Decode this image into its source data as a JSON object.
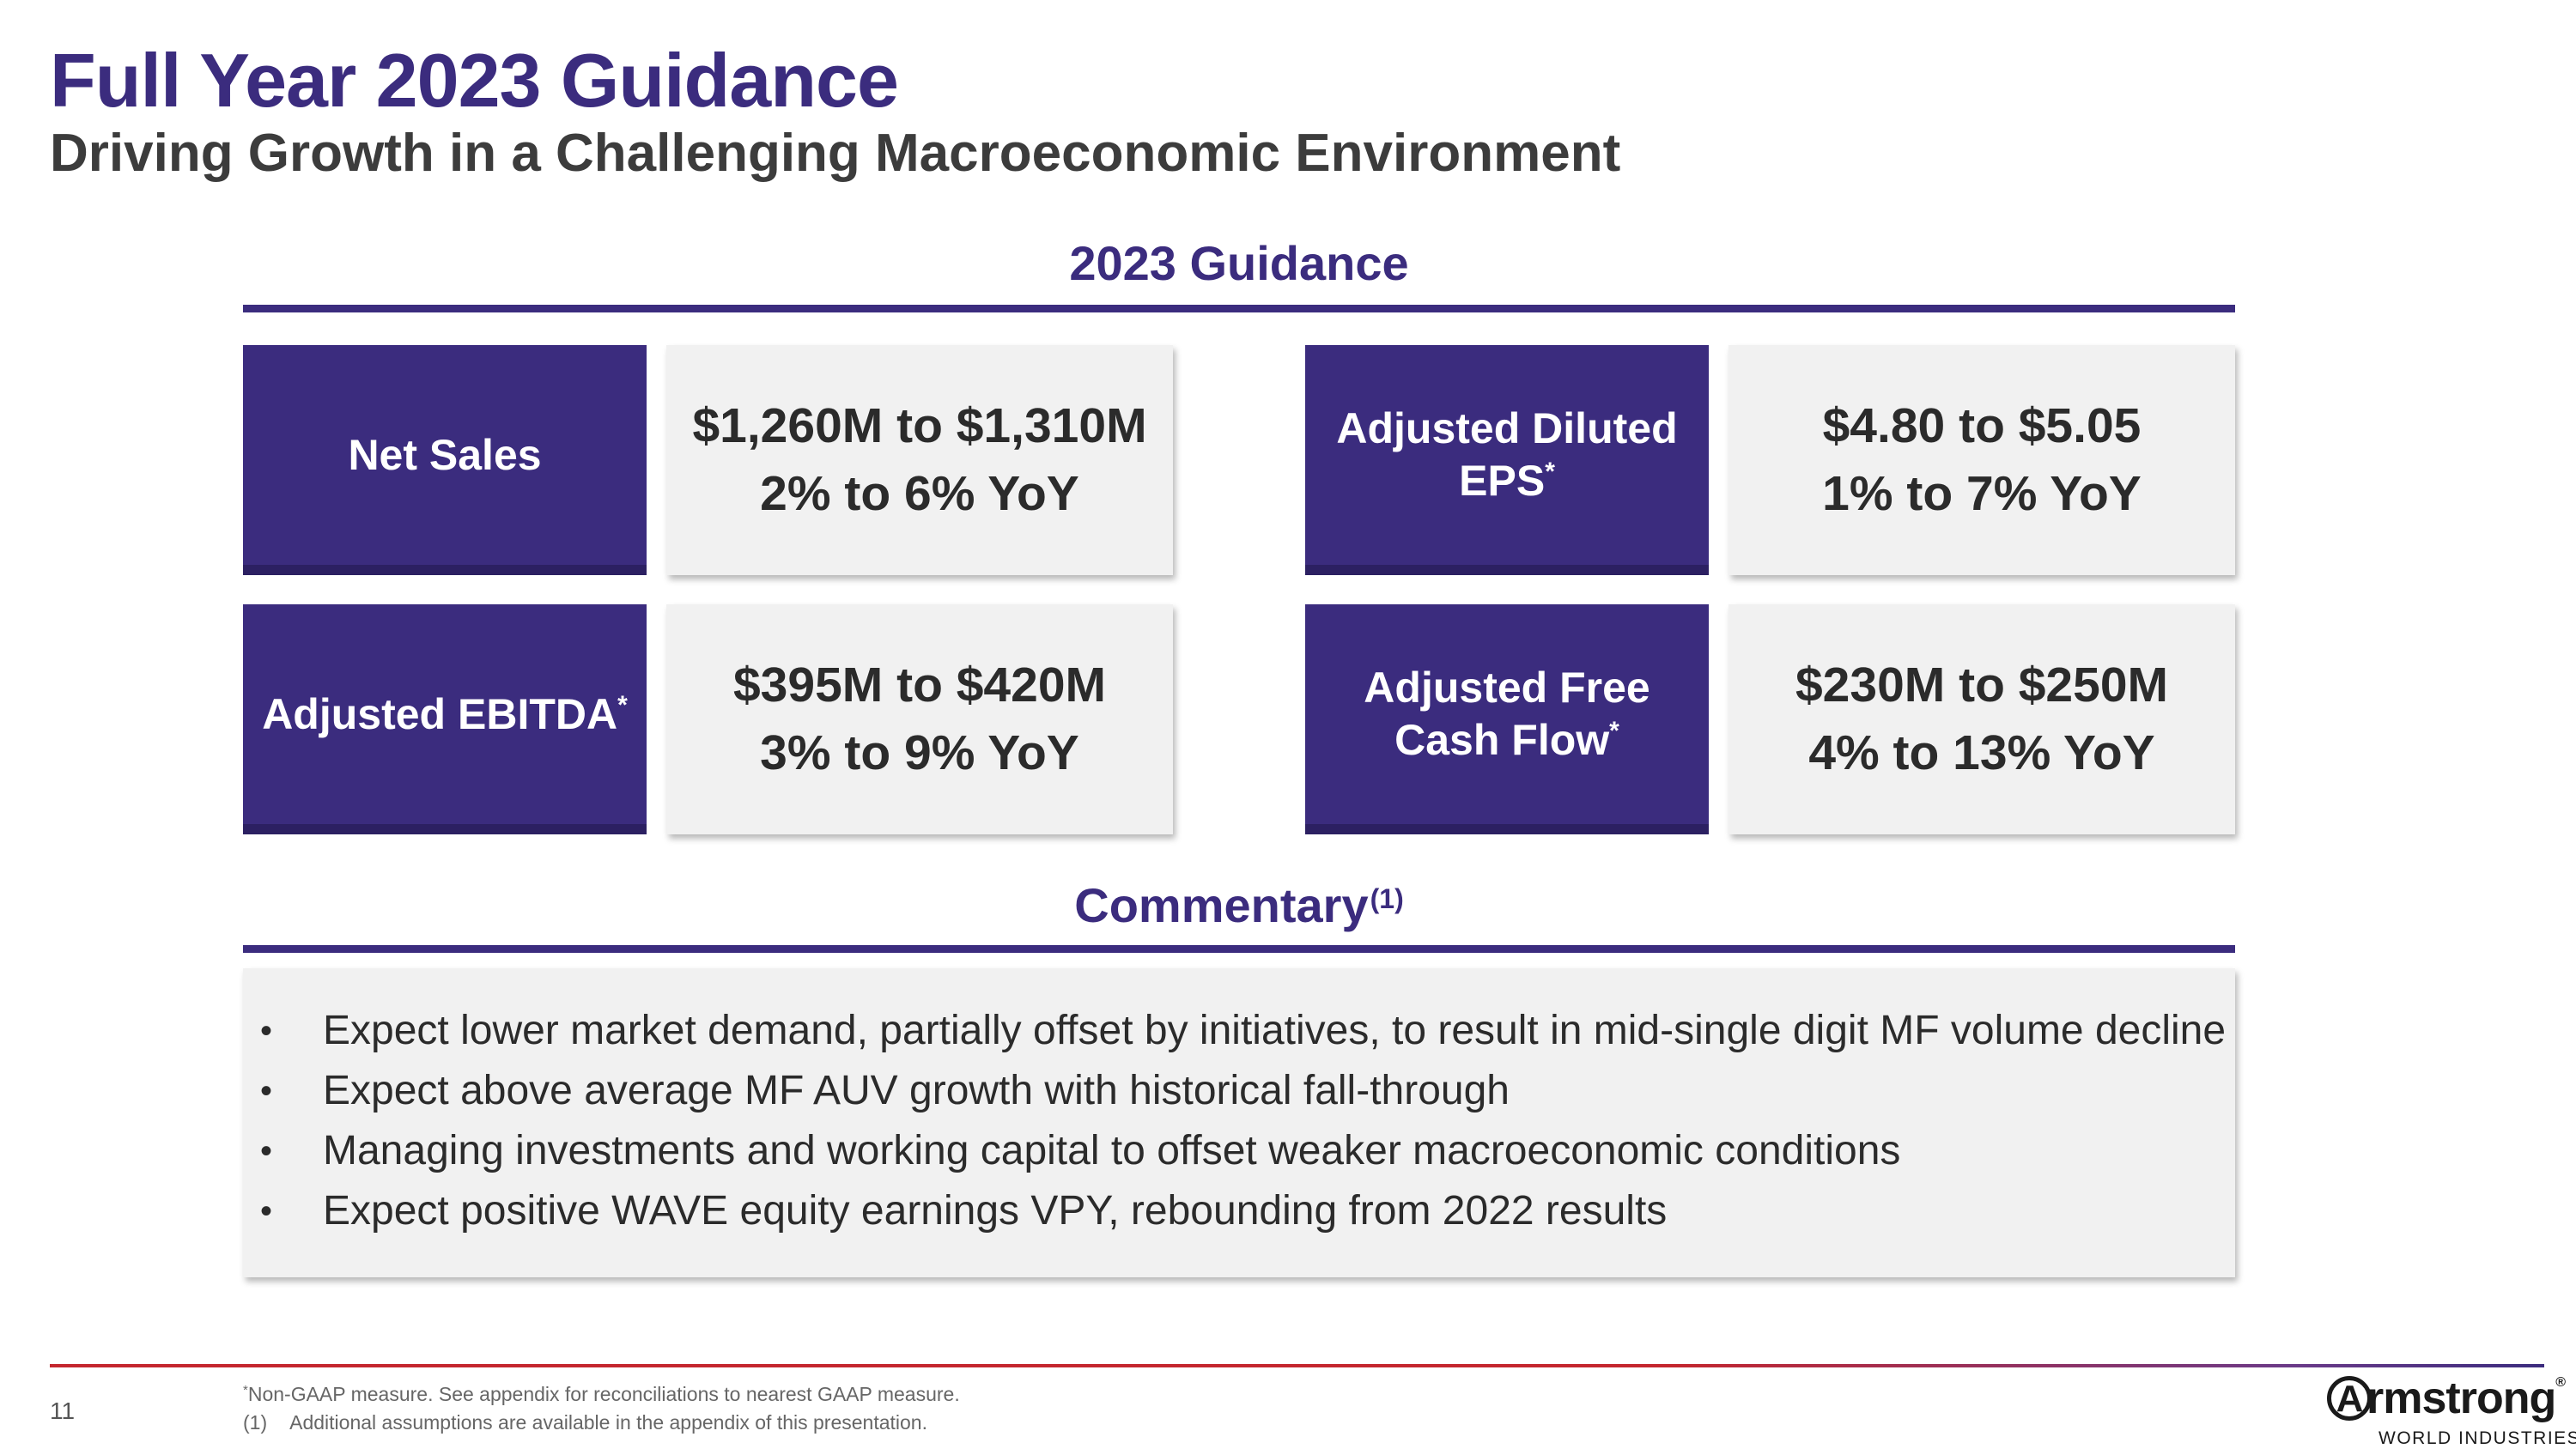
{
  "header": {
    "title": "Full Year 2023 Guidance",
    "subtitle": "Driving Growth in a Challenging Macroeconomic Environment"
  },
  "guidance": {
    "heading": "2023 Guidance",
    "items": [
      {
        "label_line1": "Net Sales",
        "label_line2": "",
        "asterisk": "",
        "range": "$1,260M to $1,310M",
        "yoy": "2% to 6% YoY"
      },
      {
        "label_line1": "Adjusted Diluted",
        "label_line2": "EPS",
        "asterisk": "*",
        "range": "$4.80 to $5.05",
        "yoy": "1% to 7% YoY"
      },
      {
        "label_line1": "Adjusted EBITDA",
        "label_line2": "",
        "asterisk": "*",
        "range": "$395M to $420M",
        "yoy": "3% to 9% YoY"
      },
      {
        "label_line1": "Adjusted Free",
        "label_line2": "Cash Flow",
        "asterisk": "*",
        "range": "$230M to $250M",
        "yoy": "4% to 13% YoY"
      }
    ]
  },
  "commentary": {
    "heading": "Commentary",
    "heading_note": "(1)",
    "bullet_char": "•",
    "bullets": [
      "Expect lower market demand, partially offset by initiatives, to result in mid-single digit MF volume decline",
      "Expect above average MF AUV growth with historical fall-through",
      "Managing investments and working capital to offset weaker macroeconomic conditions",
      "Expect positive WAVE equity earnings VPY, rebounding from 2022 results"
    ]
  },
  "footer": {
    "page_number": "11",
    "footnote_star": "*",
    "footnote_star_text": "Non-GAAP measure. See appendix for reconciliations to nearest GAAP measure.",
    "footnote_1_marker": "(1)",
    "footnote_1_text": "Additional assumptions are available in the appendix of this presentation."
  },
  "logo": {
    "first_letter": "A",
    "name_rest": "rmstrong",
    "registered": "®",
    "tagline": "WORLD INDUSTRIES"
  },
  "colors": {
    "brand_purple": "#3b2c7e",
    "brand_red": "#c4262e",
    "panel_gray": "#f1f1f1"
  }
}
